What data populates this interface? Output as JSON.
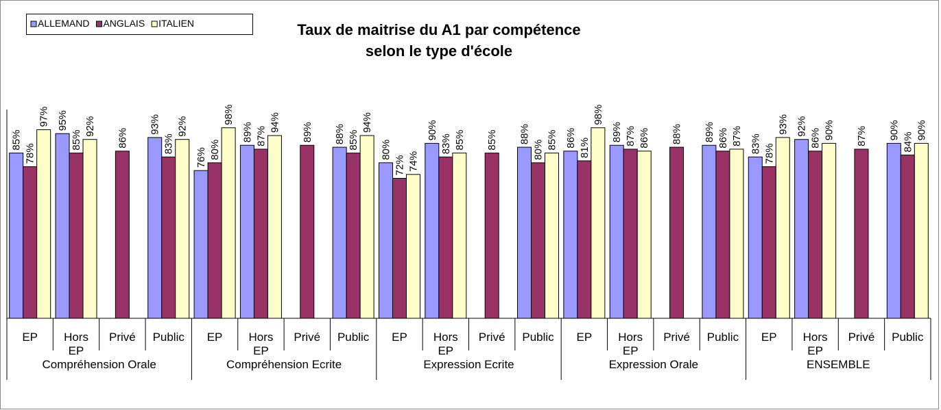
{
  "chart_data": {
    "type": "bar",
    "title": "Taux de maitrise du A1 par compétence",
    "subtitle": "selon le type d'école",
    "groups": [
      "Compréhension Orale",
      "Compréhension Ecrite",
      "Expression Ecrite",
      "Expression Orale",
      "ENSEMBLE"
    ],
    "categories": [
      "EP",
      "Hors EP",
      "Privé",
      "Public",
      "EP",
      "Hors EP",
      "Privé",
      "Public",
      "EP",
      "Hors EP",
      "Privé",
      "Public",
      "EP",
      "Hors EP",
      "Privé",
      "Public",
      "EP",
      "Hors EP",
      "Privé",
      "Public"
    ],
    "series": [
      {
        "name": "ALLEMAND",
        "color": "#9999ff",
        "values": [
          85,
          95,
          null,
          93,
          76,
          89,
          null,
          88,
          80,
          90,
          null,
          88,
          86,
          89,
          null,
          89,
          83,
          92,
          null,
          90
        ],
        "value_labels": [
          "85%",
          "95%",
          null,
          "93%",
          "76%",
          "89%",
          null,
          "88%",
          "80%",
          "90%",
          null,
          "88%",
          "86%",
          "89%",
          null,
          "89%",
          "83%",
          "92%",
          null,
          "90%"
        ]
      },
      {
        "name": "ANGLAIS",
        "color": "#993366",
        "values": [
          78,
          85,
          86,
          83,
          80,
          87,
          89,
          85,
          72,
          83,
          85,
          80,
          81,
          87,
          88,
          86,
          78,
          86,
          87,
          84
        ],
        "value_labels": [
          "78%",
          "85%",
          "86%",
          "83%",
          "80%",
          "87%",
          "89%",
          "85%",
          "72%",
          "83%",
          "85%",
          "80%",
          "81%",
          "87%",
          "88%",
          "86%",
          "78%",
          "86%",
          "87%",
          "84%"
        ]
      },
      {
        "name": "ITALIEN",
        "color": "#ffffcc",
        "values": [
          97,
          92,
          null,
          92,
          98,
          94,
          null,
          94,
          74,
          85,
          null,
          85,
          98,
          86,
          null,
          87,
          93,
          90,
          null,
          90
        ],
        "value_labels": [
          "97%",
          "92%",
          null,
          "92%",
          "98%",
          "94%",
          null,
          "94%",
          "74%",
          "85%",
          null,
          "85%",
          "98%",
          "86%",
          null,
          "87%",
          "93%",
          "90%",
          null,
          "90%"
        ]
      }
    ],
    "ylim": [
      0,
      100
    ],
    "legend": "top-left"
  }
}
